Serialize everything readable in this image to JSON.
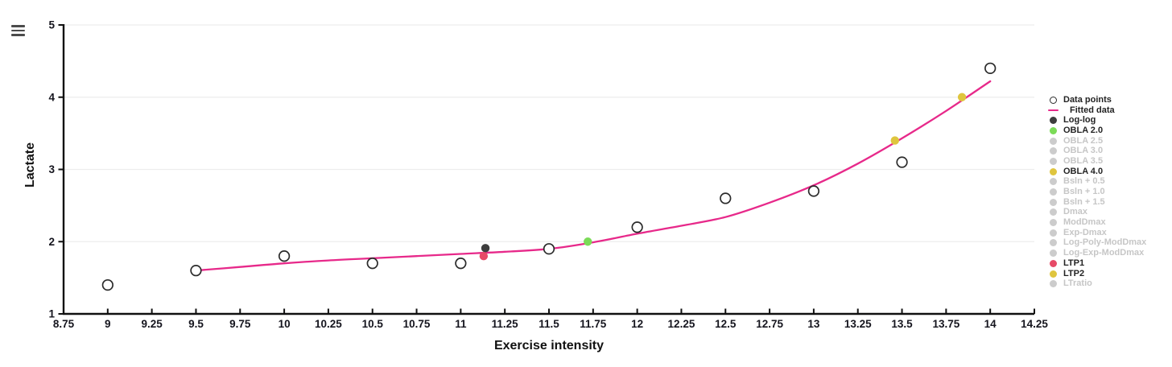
{
  "menu": {
    "icon": "hamburger-icon"
  },
  "chart_data": {
    "type": "scatter",
    "title": "",
    "xlabel": "Exercise intensity",
    "ylabel": "Lactate",
    "xlim": [
      8.75,
      14.25
    ],
    "ylim": [
      1,
      5
    ],
    "grid": "horizontal",
    "legend_position": "right",
    "x_tick_labels": [
      "8.75",
      "9",
      "9.25",
      "9.5",
      "9.75",
      "10",
      "10.25",
      "10.5",
      "10.75",
      "11",
      "11.25",
      "11.5",
      "11.75",
      "12",
      "12.25",
      "12.5",
      "12.75",
      "13",
      "13.25",
      "13.5",
      "13.75",
      "14",
      "14.25"
    ],
    "x_tick_values": [
      8.75,
      9,
      9.25,
      9.5,
      9.75,
      10,
      10.25,
      10.5,
      10.75,
      11,
      11.25,
      11.5,
      11.75,
      12,
      12.25,
      12.5,
      12.75,
      13,
      13.25,
      13.5,
      13.75,
      14,
      14.25
    ],
    "y_tick_labels": [
      "1",
      "2",
      "3",
      "4",
      "5"
    ],
    "y_tick_values": [
      1,
      2,
      3,
      4,
      5
    ],
    "data_points": {
      "name": "Data points",
      "x": [
        9,
        9.5,
        10,
        10.5,
        11,
        11.5,
        12,
        12.5,
        13,
        13.5,
        14
      ],
      "y": [
        1.4,
        1.6,
        1.8,
        1.7,
        1.7,
        1.9,
        2.2,
        2.6,
        2.7,
        3.1,
        4.4
      ]
    },
    "fitted_curve": {
      "name": "Fitted data",
      "x": [
        9.5,
        9.75,
        10,
        10.25,
        10.5,
        10.75,
        11,
        11.25,
        11.5,
        11.75,
        12,
        12.25,
        12.5,
        12.75,
        13,
        13.25,
        13.5,
        13.75,
        14
      ],
      "y": [
        1.6,
        1.65,
        1.7,
        1.74,
        1.77,
        1.8,
        1.83,
        1.86,
        1.9,
        1.99,
        2.11,
        2.22,
        2.34,
        2.54,
        2.78,
        3.08,
        3.43,
        3.81,
        4.22
      ]
    },
    "threshold_markers": [
      {
        "id": "log-log",
        "label": "Log-log",
        "x": 11.14,
        "y": 1.91,
        "color": "#3d3d3d"
      },
      {
        "id": "ltp1",
        "label": "LTP1",
        "x": 11.13,
        "y": 1.8,
        "color": "#e64a67"
      },
      {
        "id": "obla-2-0",
        "label": "OBLA 2.0",
        "x": 11.72,
        "y": 2.0,
        "color": "#7bdb57"
      },
      {
        "id": "ltp2",
        "label": "LTP2",
        "x": 13.46,
        "y": 3.4,
        "color": "#dfc53e"
      },
      {
        "id": "obla-4-0",
        "label": "OBLA 4.0",
        "x": 13.84,
        "y": 4.0,
        "color": "#dfc53e"
      }
    ],
    "legend": [
      {
        "label": "Data points",
        "marker": "open",
        "color": "#2b2b2b",
        "active": true
      },
      {
        "label": "Fitted data",
        "marker": "line",
        "color": "#e7298a",
        "active": true
      },
      {
        "label": "Log-log",
        "marker": "dot",
        "color": "#3d3d3d",
        "active": true
      },
      {
        "label": "OBLA 2.0",
        "marker": "dot",
        "color": "#7bdb57",
        "active": true
      },
      {
        "label": "OBLA 2.5",
        "marker": "dot",
        "color": "#cccccc",
        "active": false
      },
      {
        "label": "OBLA 3.0",
        "marker": "dot",
        "color": "#cccccc",
        "active": false
      },
      {
        "label": "OBLA 3.5",
        "marker": "dot",
        "color": "#cccccc",
        "active": false
      },
      {
        "label": "OBLA 4.0",
        "marker": "dot",
        "color": "#dfc53e",
        "active": true
      },
      {
        "label": "Bsln + 0.5",
        "marker": "dot",
        "color": "#cccccc",
        "active": false
      },
      {
        "label": "Bsln + 1.0",
        "marker": "dot",
        "color": "#cccccc",
        "active": false
      },
      {
        "label": "Bsln + 1.5",
        "marker": "dot",
        "color": "#cccccc",
        "active": false
      },
      {
        "label": "Dmax",
        "marker": "dot",
        "color": "#cccccc",
        "active": false
      },
      {
        "label": "ModDmax",
        "marker": "dot",
        "color": "#cccccc",
        "active": false
      },
      {
        "label": "Exp-Dmax",
        "marker": "dot",
        "color": "#cccccc",
        "active": false
      },
      {
        "label": "Log-Poly-ModDmax",
        "marker": "dot",
        "color": "#cccccc",
        "active": false
      },
      {
        "label": "Log-Exp-ModDmax",
        "marker": "dot",
        "color": "#cccccc",
        "active": false
      },
      {
        "label": "LTP1",
        "marker": "dot",
        "color": "#e64a67",
        "active": true
      },
      {
        "label": "LTP2",
        "marker": "dot",
        "color": "#dfc53e",
        "active": true
      },
      {
        "label": "LTratio",
        "marker": "dot",
        "color": "#cccccc",
        "active": false
      }
    ],
    "colors": {
      "fitted_line": "#e7298a",
      "point_stroke": "#2b2b2b",
      "point_fill": "#ffffff",
      "axis": "#101010",
      "grid": "#ededed",
      "tick_text": "#15151e"
    }
  }
}
